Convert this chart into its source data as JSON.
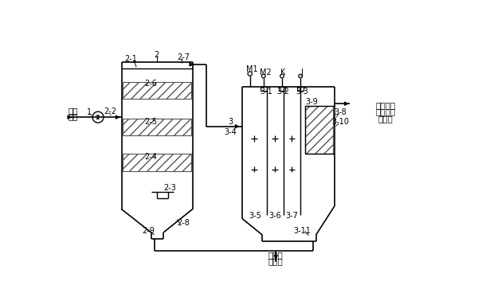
{
  "bg_color": "#ffffff",
  "line_color": "#000000",
  "labels": {
    "inlet_text_1": "倒角",
    "inlet_text_2": "污水",
    "outlet_text_1": "出水达标",
    "outlet_text_2": "排放或回",
    "outlet_text_3": "收利用",
    "bottom_text_1": "倒角污",
    "bottom_text_2": "泥回收",
    "l1": "1",
    "l2": "2",
    "l2_1": "2-1",
    "l2_2": "2-2",
    "l2_3": "2-3",
    "l2_4": "2-4",
    "l2_5": "2-5",
    "l2_6": "2-6",
    "l2_7": "2-7",
    "l2_8": "2-8",
    "l2_9": "2-9",
    "l3": "3",
    "lM1": "M1",
    "lM2": "M2",
    "lK": "K",
    "lJ": "J",
    "l3_1": "3-1",
    "l3_2": "3-2",
    "l3_3": "3-3",
    "l3_4": "3-4",
    "l3_5": "3-5",
    "l3_6": "3-6",
    "l3_7": "3-7",
    "l3_8": "3-8",
    "l3_9": "3-9",
    "l3_10": "3-10",
    "l3_11": "3-11"
  }
}
